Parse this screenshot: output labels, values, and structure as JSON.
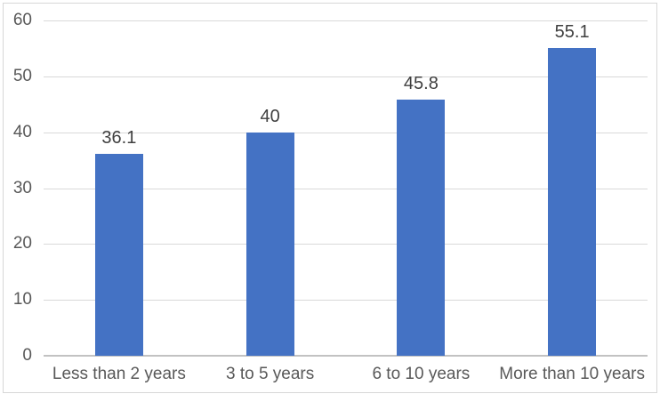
{
  "chart_data": {
    "type": "bar",
    "title": "",
    "xlabel": "",
    "ylabel": "",
    "categories": [
      "Less than 2 years",
      "3 to 5 years",
      "6 to 10 years",
      "More than 10 years"
    ],
    "values": [
      36.1,
      40,
      45.8,
      55.1
    ],
    "value_labels": [
      "36.1",
      "40",
      "45.8",
      "55.1"
    ],
    "yticks": [
      0,
      10,
      20,
      30,
      40,
      50,
      60
    ],
    "ytick_labels": [
      "0",
      "10",
      "20",
      "30",
      "40",
      "50",
      "60"
    ],
    "ylim": [
      0,
      60
    ],
    "grid": "horizontal",
    "legend": "none",
    "series_name": ""
  },
  "colors": {
    "bar_fill": "#4472c4",
    "gridline": "#d9d9d9",
    "axis_line": "#c2c2c2",
    "axis_label_text": "#595959",
    "data_label_text": "#404040",
    "chart_border": "#d7d7d7",
    "background": "#ffffff"
  }
}
